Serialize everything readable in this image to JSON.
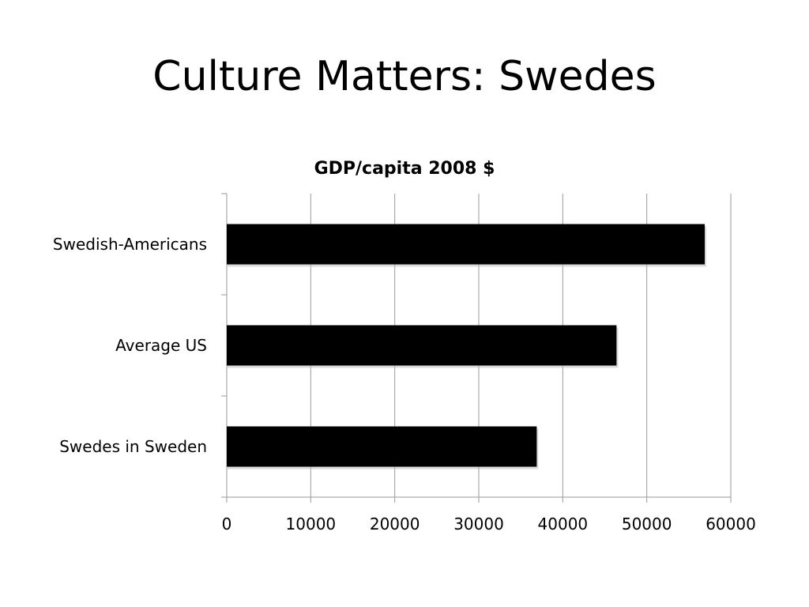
{
  "slide": {
    "title": "Culture Matters: Swedes"
  },
  "chart_data": {
    "type": "bar",
    "orientation": "horizontal",
    "title": "GDP/capita 2008 $",
    "categories": [
      "Swedish-Americans",
      "Average US",
      "Swedes in Sweden"
    ],
    "values": [
      56900,
      46400,
      36900
    ],
    "xlim": [
      0,
      60000
    ],
    "x_ticks": [
      0,
      10000,
      20000,
      30000,
      40000,
      50000,
      60000
    ],
    "xlabel": "",
    "ylabel": "",
    "grid": "vertical",
    "legend": "none",
    "bar_color": "#000000",
    "grid_color": "#9a9a9a"
  }
}
